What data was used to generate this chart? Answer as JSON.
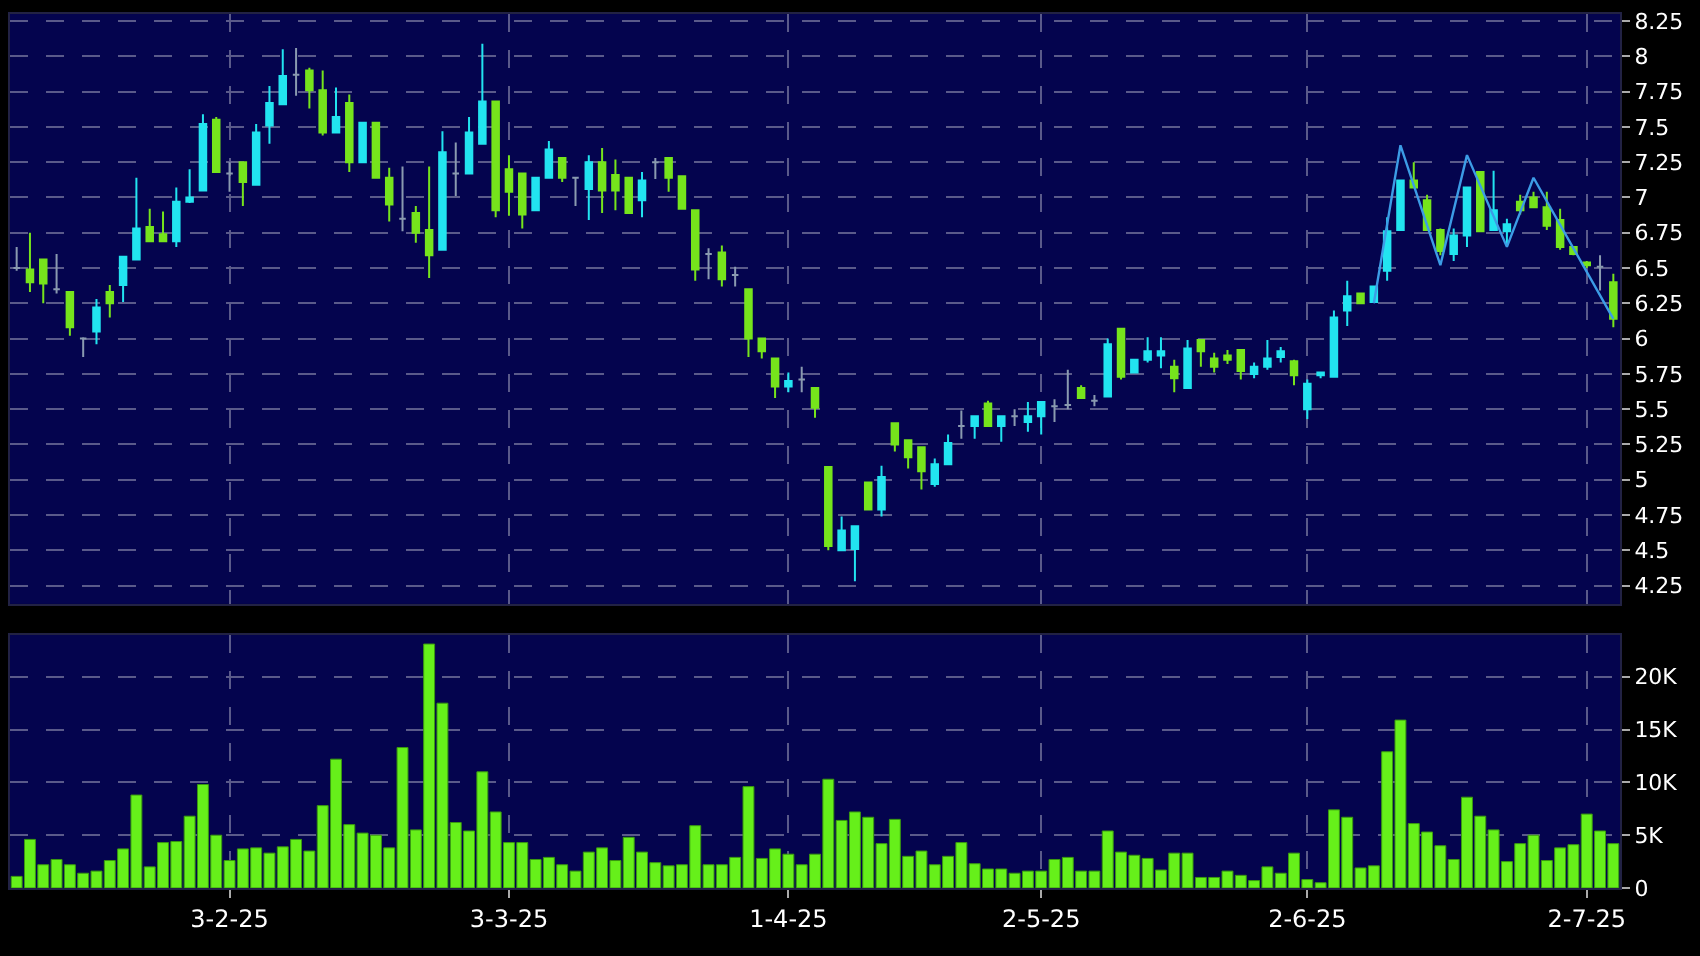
{
  "chart_data": [
    {
      "type": "candlestick",
      "tick_labels": "y",
      "grid": true,
      "categories": [
        null,
        null,
        null,
        null,
        null,
        null,
        null,
        null,
        null,
        null,
        null,
        null,
        null,
        null,
        null,
        null,
        null,
        null,
        null,
        null,
        null,
        null,
        null,
        null,
        null,
        null,
        null,
        null,
        null,
        null,
        null,
        null,
        null,
        null,
        null,
        null,
        null,
        null,
        null,
        null,
        null,
        null,
        null,
        null,
        null,
        null,
        null,
        null,
        null,
        null,
        null,
        null,
        null,
        null,
        null,
        null,
        null,
        null,
        null,
        null,
        null,
        null,
        null,
        null,
        null,
        null,
        null,
        null,
        null,
        null,
        null,
        null,
        null,
        null,
        null,
        null,
        null,
        null,
        null,
        null,
        null,
        null,
        null,
        null,
        null,
        null,
        null,
        null,
        null,
        null,
        null,
        null,
        null,
        null,
        null,
        null,
        null,
        null,
        null,
        null,
        null,
        null,
        null,
        null,
        null,
        null,
        null,
        null,
        null,
        null,
        null,
        null,
        null,
        null,
        null,
        null,
        null,
        null,
        null,
        null,
        null
      ],
      "ohlc": [
        [
          6.5,
          6.65,
          6.48,
          6.5
        ],
        [
          6.49,
          6.75,
          6.33,
          6.4
        ],
        [
          6.56,
          6.56,
          6.25,
          6.39
        ],
        [
          6.35,
          6.6,
          6.32,
          6.35
        ],
        [
          6.33,
          6.33,
          6.02,
          6.08
        ],
        [
          6.0,
          6.01,
          5.87,
          6.0
        ],
        [
          6.05,
          6.28,
          5.96,
          6.22
        ],
        [
          6.33,
          6.38,
          6.15,
          6.25
        ],
        [
          6.38,
          6.58,
          6.26,
          6.58
        ],
        [
          6.56,
          7.14,
          6.56,
          6.78
        ],
        [
          6.79,
          6.92,
          6.69,
          6.69
        ],
        [
          6.74,
          6.9,
          6.69,
          6.69
        ],
        [
          6.69,
          7.07,
          6.65,
          6.97
        ],
        [
          6.97,
          7.2,
          6.96,
          7.0
        ],
        [
          7.05,
          7.59,
          7.05,
          7.52
        ],
        [
          7.55,
          7.57,
          7.18,
          7.18
        ],
        [
          7.17,
          7.25,
          7.04,
          7.17
        ],
        [
          7.25,
          7.25,
          6.94,
          7.11
        ],
        [
          7.09,
          7.52,
          7.09,
          7.46
        ],
        [
          7.51,
          7.79,
          7.38,
          7.67
        ],
        [
          7.66,
          8.05,
          7.66,
          7.86
        ],
        [
          7.87,
          8.06,
          7.72,
          7.87
        ],
        [
          7.9,
          7.92,
          7.63,
          7.76
        ],
        [
          7.76,
          7.9,
          7.44,
          7.46
        ],
        [
          7.46,
          7.78,
          7.46,
          7.57
        ],
        [
          7.67,
          7.73,
          7.18,
          7.25
        ],
        [
          7.25,
          7.53,
          7.25,
          7.53
        ],
        [
          7.53,
          7.53,
          7.14,
          7.14
        ],
        [
          7.14,
          7.21,
          6.83,
          6.95
        ],
        [
          6.85,
          7.22,
          6.76,
          6.85
        ],
        [
          6.89,
          6.94,
          6.68,
          6.75
        ],
        [
          6.77,
          7.22,
          6.43,
          6.59
        ],
        [
          6.63,
          7.47,
          6.63,
          7.32
        ],
        [
          7.17,
          7.39,
          7.01,
          7.17
        ],
        [
          7.17,
          7.57,
          7.17,
          7.46
        ],
        [
          7.38,
          8.09,
          7.38,
          7.68
        ],
        [
          7.68,
          7.68,
          6.86,
          6.91
        ],
        [
          7.2,
          7.3,
          6.87,
          7.04
        ],
        [
          7.17,
          7.17,
          6.78,
          6.88
        ],
        [
          6.91,
          7.14,
          6.91,
          7.14
        ],
        [
          7.14,
          7.4,
          7.14,
          7.34
        ],
        [
          7.28,
          7.28,
          7.11,
          7.14
        ],
        [
          7.14,
          7.14,
          6.94,
          7.14
        ],
        [
          7.06,
          7.3,
          6.84,
          7.25
        ],
        [
          7.25,
          7.35,
          6.89,
          7.05
        ],
        [
          7.16,
          7.27,
          6.91,
          7.05
        ],
        [
          7.14,
          7.14,
          6.89,
          6.89
        ],
        [
          6.98,
          7.18,
          6.86,
          7.12
        ],
        [
          7.25,
          7.28,
          7.13,
          7.25
        ],
        [
          7.28,
          7.28,
          7.04,
          7.14
        ],
        [
          7.15,
          7.15,
          6.92,
          6.92
        ],
        [
          6.91,
          6.91,
          6.41,
          6.49
        ],
        [
          6.6,
          6.64,
          6.42,
          6.6
        ],
        [
          6.61,
          6.66,
          6.37,
          6.42
        ],
        [
          6.45,
          6.51,
          6.37,
          6.45
        ],
        [
          6.35,
          6.35,
          5.87,
          6.0
        ],
        [
          6.0,
          6.0,
          5.86,
          5.91
        ],
        [
          5.86,
          5.86,
          5.58,
          5.66
        ],
        [
          5.66,
          5.76,
          5.62,
          5.7
        ],
        [
          5.71,
          5.8,
          5.62,
          5.71
        ],
        [
          5.65,
          5.65,
          5.44,
          5.51
        ],
        [
          5.09,
          5.09,
          4.5,
          4.53
        ],
        [
          4.5,
          4.74,
          4.5,
          4.64
        ],
        [
          4.51,
          4.67,
          4.28,
          4.67
        ],
        [
          4.98,
          4.98,
          4.79,
          4.79
        ],
        [
          4.79,
          5.1,
          4.74,
          5.02
        ],
        [
          5.4,
          5.4,
          5.2,
          5.25
        ],
        [
          5.28,
          5.28,
          5.08,
          5.16
        ],
        [
          5.23,
          5.23,
          4.93,
          5.06
        ],
        [
          4.97,
          5.15,
          4.95,
          5.11
        ],
        [
          5.11,
          5.32,
          5.11,
          5.26
        ],
        [
          5.38,
          5.49,
          5.29,
          5.38
        ],
        [
          5.38,
          5.45,
          5.29,
          5.45
        ],
        [
          5.54,
          5.56,
          5.38,
          5.38
        ],
        [
          5.38,
          5.45,
          5.27,
          5.45
        ],
        [
          5.45,
          5.5,
          5.38,
          5.45
        ],
        [
          5.41,
          5.55,
          5.34,
          5.45
        ],
        [
          5.45,
          5.55,
          5.32,
          5.55
        ],
        [
          5.52,
          5.57,
          5.41,
          5.52
        ],
        [
          5.53,
          5.78,
          5.5,
          5.53
        ],
        [
          5.65,
          5.67,
          5.58,
          5.58
        ],
        [
          5.56,
          5.6,
          5.52,
          5.56
        ],
        [
          5.59,
          6.0,
          5.59,
          5.96
        ],
        [
          6.07,
          6.07,
          5.71,
          5.73
        ],
        [
          5.76,
          5.85,
          5.76,
          5.85
        ],
        [
          5.85,
          6.01,
          5.83,
          5.91
        ],
        [
          5.88,
          6.01,
          5.79,
          5.91
        ],
        [
          5.8,
          5.85,
          5.62,
          5.72
        ],
        [
          5.65,
          5.99,
          5.65,
          5.93
        ],
        [
          5.99,
          5.99,
          5.8,
          5.91
        ],
        [
          5.86,
          5.9,
          5.76,
          5.8
        ],
        [
          5.88,
          5.92,
          5.82,
          5.85
        ],
        [
          5.92,
          5.92,
          5.71,
          5.77
        ],
        [
          5.75,
          5.83,
          5.72,
          5.8
        ],
        [
          5.8,
          5.99,
          5.78,
          5.86
        ],
        [
          5.87,
          5.94,
          5.83,
          5.91
        ],
        [
          5.84,
          5.85,
          5.67,
          5.74
        ],
        [
          5.5,
          5.71,
          5.43,
          5.68
        ],
        [
          5.74,
          5.76,
          5.72,
          5.76
        ],
        [
          5.73,
          6.2,
          5.73,
          6.15
        ],
        [
          6.2,
          6.41,
          6.09,
          6.3
        ],
        [
          6.32,
          6.32,
          6.25,
          6.25
        ],
        [
          6.26,
          6.37,
          6.26,
          6.37
        ],
        [
          6.48,
          6.86,
          6.41,
          6.76
        ],
        [
          6.77,
          7.12,
          6.77,
          7.12
        ],
        [
          7.12,
          7.25,
          7.07,
          7.07
        ],
        [
          6.98,
          7.02,
          6.77,
          6.77
        ],
        [
          6.77,
          6.78,
          6.59,
          6.62
        ],
        [
          6.6,
          6.78,
          6.55,
          6.73
        ],
        [
          6.73,
          7.07,
          6.65,
          7.07
        ],
        [
          7.18,
          7.18,
          6.76,
          6.76
        ],
        [
          6.77,
          7.19,
          6.77,
          6.91
        ],
        [
          6.76,
          6.85,
          6.66,
          6.81
        ],
        [
          6.97,
          7.02,
          6.88,
          6.91
        ],
        [
          7.0,
          7.04,
          6.93,
          6.93
        ],
        [
          6.93,
          7.04,
          6.77,
          6.8
        ],
        [
          6.84,
          6.92,
          6.63,
          6.65
        ],
        [
          6.65,
          6.65,
          6.59,
          6.6
        ],
        [
          6.54,
          6.55,
          6.5,
          6.52
        ],
        [
          6.51,
          6.59,
          6.34,
          6.51
        ],
        [
          6.4,
          6.46,
          6.08,
          6.14
        ]
      ],
      "colors": [
        "#8a9ab0",
        "#76e41c",
        "#76e41c",
        "#8a9ab0",
        "#76e41c",
        "#8a9ab0",
        "#22e4f0",
        "#76e41c",
        "#22e4f0",
        "#22e4f0",
        "#76e41c",
        "#76e41c",
        "#22e4f0",
        "#22e4f0",
        "#22e4f0",
        "#76e41c",
        "#8a9ab0",
        "#76e41c",
        "#22e4f0",
        "#22e4f0",
        "#22e4f0",
        "#8a9ab0",
        "#76e41c",
        "#76e41c",
        "#22e4f0",
        "#76e41c",
        "#22e4f0",
        "#76e41c",
        "#76e41c",
        "#8a9ab0",
        "#76e41c",
        "#76e41c",
        "#22e4f0",
        "#8a9ab0",
        "#22e4f0",
        "#22e4f0",
        "#76e41c",
        "#76e41c",
        "#76e41c",
        "#22e4f0",
        "#22e4f0",
        "#76e41c",
        "#8a9ab0",
        "#22e4f0",
        "#76e41c",
        "#76e41c",
        "#76e41c",
        "#22e4f0",
        "#8a9ab0",
        "#76e41c",
        "#76e41c",
        "#76e41c",
        "#8a9ab0",
        "#76e41c",
        "#8a9ab0",
        "#76e41c",
        "#76e41c",
        "#76e41c",
        "#22e4f0",
        "#8a9ab0",
        "#76e41c",
        "#76e41c",
        "#22e4f0",
        "#22e4f0",
        "#76e41c",
        "#22e4f0",
        "#76e41c",
        "#76e41c",
        "#76e41c",
        "#22e4f0",
        "#22e4f0",
        "#8a9ab0",
        "#22e4f0",
        "#76e41c",
        "#22e4f0",
        "#8a9ab0",
        "#22e4f0",
        "#22e4f0",
        "#8a9ab0",
        "#8a9ab0",
        "#76e41c",
        "#8a9ab0",
        "#22e4f0",
        "#76e41c",
        "#22e4f0",
        "#22e4f0",
        "#22e4f0",
        "#76e41c",
        "#22e4f0",
        "#76e41c",
        "#76e41c",
        "#76e41c",
        "#76e41c",
        "#22e4f0",
        "#22e4f0",
        "#22e4f0",
        "#76e41c",
        "#22e4f0",
        "#22e4f0",
        "#22e4f0",
        "#22e4f0",
        "#76e41c",
        "#22e4f0",
        "#22e4f0",
        "#22e4f0",
        "#76e41c",
        "#76e41c",
        "#76e41c",
        "#22e4f0",
        "#22e4f0",
        "#76e41c",
        "#22e4f0",
        "#22e4f0",
        "#76e41c",
        "#76e41c",
        "#76e41c",
        "#76e41c",
        "#76e41c",
        "#76e41c",
        "#8a9ab0",
        "#76e41c"
      ],
      "series": [
        {
          "type": "line",
          "color": "#3c9ce6",
          "values": [
            null,
            null,
            null,
            null,
            null,
            null,
            null,
            null,
            null,
            null,
            null,
            null,
            null,
            null,
            null,
            null,
            null,
            null,
            null,
            null,
            null,
            null,
            null,
            null,
            null,
            null,
            null,
            null,
            null,
            null,
            null,
            null,
            null,
            null,
            null,
            null,
            null,
            null,
            null,
            null,
            null,
            null,
            null,
            null,
            null,
            null,
            null,
            null,
            null,
            null,
            null,
            null,
            null,
            null,
            null,
            null,
            null,
            null,
            null,
            null,
            null,
            null,
            null,
            null,
            null,
            null,
            null,
            null,
            null,
            null,
            null,
            null,
            null,
            null,
            null,
            null,
            null,
            null,
            null,
            null,
            null,
            null,
            null,
            null,
            null,
            null,
            null,
            null,
            null,
            null,
            null,
            null,
            null,
            null,
            null,
            null,
            null,
            null,
            null,
            null,
            null,
            null,
            6.25,
            null,
            7.37,
            null,
            null,
            6.52,
            null,
            7.3,
            null,
            null,
            6.65,
            null,
            7.14,
            null,
            null,
            null,
            null,
            null,
            6.14
          ]
        }
      ],
      "ylim": [
        4.12,
        8.3
      ],
      "yticks": [
        4.25,
        4.5,
        4.75,
        5,
        5.25,
        5.5,
        5.75,
        6,
        6.25,
        6.5,
        6.75,
        7,
        7.25,
        7.5,
        7.75,
        8,
        8.25
      ]
    },
    {
      "type": "bar",
      "grid": true,
      "color": "#66f01a",
      "categories": [
        null,
        null,
        null,
        null,
        null,
        null,
        null,
        null,
        null,
        null,
        null,
        null,
        null,
        null,
        null,
        null,
        "3-2-25",
        null,
        null,
        null,
        null,
        null,
        null,
        null,
        null,
        null,
        null,
        null,
        null,
        null,
        null,
        null,
        null,
        null,
        null,
        null,
        null,
        "3-3-25",
        null,
        null,
        null,
        null,
        null,
        null,
        null,
        null,
        null,
        null,
        null,
        null,
        null,
        null,
        null,
        null,
        null,
        null,
        null,
        null,
        "1-4-25",
        null,
        null,
        null,
        null,
        null,
        null,
        null,
        null,
        null,
        null,
        null,
        null,
        null,
        null,
        null,
        null,
        null,
        null,
        "2-5-25",
        null,
        null,
        null,
        null,
        null,
        null,
        null,
        null,
        null,
        null,
        null,
        null,
        null,
        null,
        null,
        null,
        null,
        null,
        null,
        "2-6-25",
        null,
        null,
        null,
        null,
        null,
        null,
        null,
        null,
        null,
        null,
        null,
        null,
        null,
        null,
        null,
        null,
        null,
        null,
        null,
        null,
        "2-7-25",
        null,
        null
      ],
      "values": [
        1100,
        4600,
        2200,
        2700,
        2200,
        1400,
        1600,
        2600,
        3700,
        8800,
        2000,
        4300,
        4400,
        6800,
        9800,
        5000,
        2600,
        3700,
        3800,
        3300,
        3900,
        4600,
        3500,
        7800,
        12200,
        6000,
        5200,
        5000,
        3800,
        13300,
        5500,
        23100,
        17500,
        6200,
        5400,
        11000,
        7200,
        4300,
        4300,
        2700,
        2900,
        2200,
        1600,
        3400,
        3800,
        2600,
        4800,
        3400,
        2400,
        2100,
        2200,
        5900,
        2200,
        2200,
        2900,
        9600,
        2800,
        3700,
        3200,
        2200,
        3200,
        10300,
        6400,
        7200,
        6700,
        4200,
        6500,
        3000,
        3500,
        2200,
        3000,
        4300,
        2300,
        1800,
        1800,
        1400,
        1600,
        1600,
        2700,
        2900,
        1600,
        1600,
        5400,
        3400,
        3100,
        2800,
        1700,
        3300,
        3300,
        1000,
        1000,
        1600,
        1200,
        700,
        2000,
        1400,
        3300,
        800,
        500,
        7400,
        6700,
        1900,
        2100,
        12900,
        15900,
        6100,
        5300,
        4000,
        2700,
        8600,
        6800,
        5500,
        2500,
        4200,
        5000,
        2600,
        3800,
        4100,
        7000,
        5400,
        4200
      ],
      "ylim": [
        0,
        24000
      ],
      "yticks": [
        0,
        {
          "value": 5000,
          "label": "5K"
        },
        {
          "value": 10000,
          "label": "10K"
        },
        {
          "value": 15000,
          "label": "15K"
        },
        {
          "value": 20000,
          "label": "20K"
        }
      ]
    }
  ]
}
